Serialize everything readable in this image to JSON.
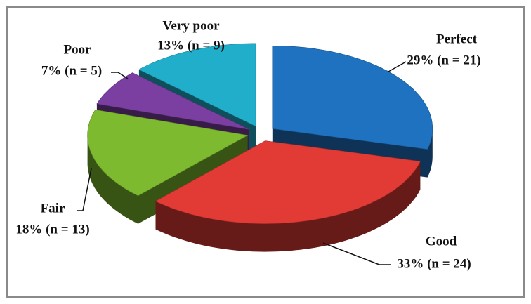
{
  "chart_data": {
    "type": "pie3d",
    "categories": [
      "Perfect",
      "Good",
      "Fair",
      "Poor",
      "Very poor"
    ],
    "values": [
      29,
      33,
      18,
      7,
      13
    ],
    "value_labels": [
      "29% (n = 21)",
      "33% (n = 24)",
      "18% (n = 13)",
      "7% (n = 5)",
      "13% (n = 9)"
    ],
    "colors": [
      "#1f72c0",
      "#e23b36",
      "#7dba2f",
      "#7a3fa0",
      "#21aecb"
    ]
  }
}
